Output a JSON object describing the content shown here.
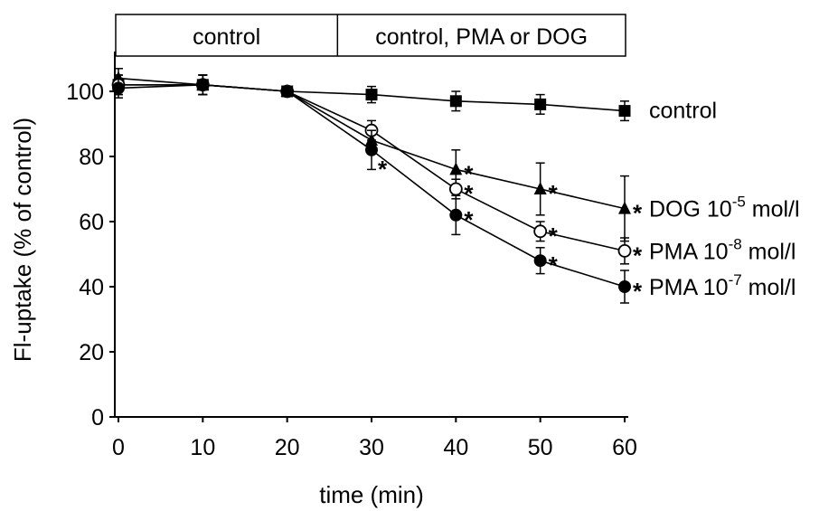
{
  "chart_data": {
    "type": "line",
    "xlabel": "time (min)",
    "ylabel": "Fl-uptake (% of control)",
    "xlim": [
      0,
      60
    ],
    "ylim": [
      0,
      110
    ],
    "xticks": [
      "0",
      "10",
      "20",
      "30",
      "40",
      "50",
      "60"
    ],
    "yticks": [
      "0",
      "20",
      "40",
      "60",
      "80",
      "100"
    ],
    "grid": false,
    "phases": [
      {
        "label": "control",
        "x_start": 0,
        "x_end": 25
      },
      {
        "label": "control, PMA or DOG",
        "x_start": 25,
        "x_end": 60
      }
    ],
    "series": [
      {
        "name": "control",
        "label_text": "control",
        "label_sup": "",
        "label_tail": "",
        "marker": "square-filled",
        "x": [
          0,
          10,
          20,
          30,
          40,
          50,
          60
        ],
        "y": [
          102,
          102,
          100,
          99,
          97,
          96,
          94
        ],
        "err": [
          3,
          3,
          1.5,
          2.5,
          3,
          3,
          3
        ],
        "significant": [
          false,
          false,
          false,
          false,
          false,
          false,
          false
        ]
      },
      {
        "name": "DOG 10-5 mol/l",
        "label_text": "DOG 10",
        "label_sup": "-5",
        "label_tail": " mol/l",
        "marker": "triangle-filled",
        "x": [
          0,
          10,
          20,
          30,
          40,
          50,
          60
        ],
        "y": [
          104,
          102,
          100,
          85,
          76,
          70,
          64
        ],
        "err": [
          3,
          3,
          1.5,
          3,
          6,
          8,
          10
        ],
        "significant": [
          false,
          false,
          false,
          false,
          true,
          true,
          true
        ]
      },
      {
        "name": "PMA 10-8 mol/l",
        "label_text": "PMA 10",
        "label_sup": "-8",
        "label_tail": " mol/l",
        "marker": "circle-open",
        "x": [
          0,
          10,
          20,
          30,
          40,
          50,
          60
        ],
        "y": [
          102,
          102,
          100,
          88,
          70,
          57,
          51
        ],
        "err": [
          3,
          3,
          1.5,
          3,
          3,
          3,
          4
        ],
        "significant": [
          false,
          false,
          false,
          false,
          true,
          true,
          true
        ]
      },
      {
        "name": "PMA 10-7 mol/l",
        "label_text": "PMA 10",
        "label_sup": "-7",
        "label_tail": " mol/l",
        "marker": "circle-filled",
        "x": [
          0,
          10,
          20,
          30,
          40,
          50,
          60
        ],
        "y": [
          101,
          102,
          100,
          82,
          62,
          48,
          40
        ],
        "err": [
          3,
          3,
          1.5,
          6,
          6,
          4,
          5
        ],
        "significant": [
          false,
          false,
          false,
          true,
          true,
          true,
          true
        ]
      }
    ],
    "significance_marker": "*"
  }
}
